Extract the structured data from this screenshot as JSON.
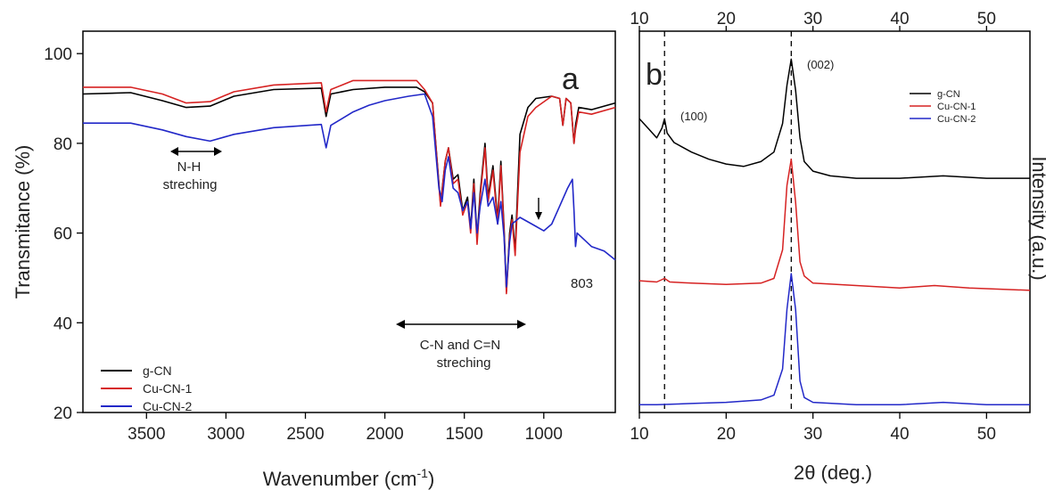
{
  "chart_data": [
    {
      "type": "line",
      "panel_label": "a",
      "xlabel": "Wavenumber (cm",
      "xlabel_sup": "-1",
      "xlabel_close": ")",
      "ylabel": "Transmitance (%)",
      "xlim": [
        3900,
        550
      ],
      "ylim": [
        20,
        105
      ],
      "x_ticks": [
        3500,
        3000,
        2500,
        2000,
        1500,
        1000
      ],
      "y_ticks": [
        20,
        40,
        60,
        80,
        100
      ],
      "legend_position": "bottom-left",
      "legend": [
        "g-CN",
        "Cu-CN-1",
        "Cu-CN-2"
      ],
      "annotations": {
        "nh_line1": "N-H",
        "nh_line2": "streching",
        "cn_line1": "C-N and C=N",
        "cn_line2": "streching",
        "peak": "803"
      },
      "series": [
        {
          "name": "g-CN",
          "color": "#000000",
          "points": [
            [
              3900,
              91
            ],
            [
              3600,
              91.3
            ],
            [
              3400,
              89.5
            ],
            [
              3250,
              88
            ],
            [
              3100,
              88.3
            ],
            [
              2950,
              90.5
            ],
            [
              2700,
              92
            ],
            [
              2400,
              92.3
            ],
            [
              2370,
              86
            ],
            [
              2340,
              91
            ],
            [
              2200,
              92
            ],
            [
              2000,
              92.5
            ],
            [
              1800,
              92.5
            ],
            [
              1750,
              91.5
            ],
            [
              1700,
              89
            ],
            [
              1650,
              66.5
            ],
            [
              1620,
              76
            ],
            [
              1600,
              79
            ],
            [
              1570,
              72
            ],
            [
              1540,
              73
            ],
            [
              1510,
              65
            ],
            [
              1480,
              68
            ],
            [
              1460,
              61
            ],
            [
              1440,
              72
            ],
            [
              1420,
              59
            ],
            [
              1400,
              69
            ],
            [
              1370,
              80
            ],
            [
              1350,
              68
            ],
            [
              1320,
              75
            ],
            [
              1290,
              63
            ],
            [
              1270,
              76
            ],
            [
              1250,
              61
            ],
            [
              1235,
              47
            ],
            [
              1215,
              60
            ],
            [
              1200,
              64
            ],
            [
              1180,
              56
            ],
            [
              1150,
              82
            ],
            [
              1100,
              88
            ],
            [
              1050,
              90
            ],
            [
              950,
              90.5
            ],
            [
              900,
              90
            ],
            [
              880,
              84
            ],
            [
              860,
              90
            ],
            [
              830,
              89
            ],
            [
              810,
              80
            ],
            [
              800,
              84
            ],
            [
              780,
              88
            ],
            [
              700,
              87.5
            ],
            [
              550,
              89
            ]
          ]
        },
        {
          "name": "Cu-CN-1",
          "color": "#d62222",
          "points": [
            [
              3900,
              92.5
            ],
            [
              3600,
              92.5
            ],
            [
              3400,
              91
            ],
            [
              3250,
              89
            ],
            [
              3100,
              89.3
            ],
            [
              2950,
              91.5
            ],
            [
              2700,
              93
            ],
            [
              2400,
              93.5
            ],
            [
              2370,
              87
            ],
            [
              2340,
              92
            ],
            [
              2200,
              94
            ],
            [
              2000,
              94
            ],
            [
              1800,
              94
            ],
            [
              1750,
              92
            ],
            [
              1700,
              89
            ],
            [
              1650,
              66
            ],
            [
              1620,
              76
            ],
            [
              1600,
              79
            ],
            [
              1570,
              71
            ],
            [
              1540,
              72
            ],
            [
              1510,
              64
            ],
            [
              1480,
              67
            ],
            [
              1460,
              60
            ],
            [
              1440,
              71
            ],
            [
              1420,
              57.5
            ],
            [
              1400,
              68
            ],
            [
              1370,
              79
            ],
            [
              1350,
              67
            ],
            [
              1320,
              74
            ],
            [
              1290,
              62
            ],
            [
              1270,
              75
            ],
            [
              1250,
              60
            ],
            [
              1235,
              46.5
            ],
            [
              1215,
              59
            ],
            [
              1200,
              63
            ],
            [
              1180,
              55
            ],
            [
              1150,
              78
            ],
            [
              1100,
              86
            ],
            [
              1050,
              88
            ],
            [
              950,
              90.5
            ],
            [
              900,
              90
            ],
            [
              880,
              84
            ],
            [
              860,
              90
            ],
            [
              830,
              89
            ],
            [
              810,
              80
            ],
            [
              800,
              83
            ],
            [
              780,
              87
            ],
            [
              700,
              86.5
            ],
            [
              550,
              88
            ]
          ]
        },
        {
          "name": "Cu-CN-2",
          "color": "#2228c8",
          "points": [
            [
              3900,
              84.5
            ],
            [
              3600,
              84.5
            ],
            [
              3400,
              83
            ],
            [
              3250,
              81.5
            ],
            [
              3100,
              80.5
            ],
            [
              2950,
              82
            ],
            [
              2700,
              83.5
            ],
            [
              2400,
              84.2
            ],
            [
              2370,
              79
            ],
            [
              2340,
              84
            ],
            [
              2200,
              87
            ],
            [
              2100,
              88.5
            ],
            [
              2000,
              89.5
            ],
            [
              1850,
              90.5
            ],
            [
              1750,
              91
            ],
            [
              1700,
              86
            ],
            [
              1660,
              70
            ],
            [
              1640,
              67
            ],
            [
              1620,
              74
            ],
            [
              1600,
              77
            ],
            [
              1570,
              70
            ],
            [
              1540,
              69
            ],
            [
              1510,
              65
            ],
            [
              1480,
              67
            ],
            [
              1460,
              61
            ],
            [
              1440,
              69
            ],
            [
              1420,
              60
            ],
            [
              1400,
              66
            ],
            [
              1370,
              72
            ],
            [
              1350,
              66
            ],
            [
              1320,
              68
            ],
            [
              1290,
              62
            ],
            [
              1270,
              67
            ],
            [
              1250,
              59
            ],
            [
              1235,
              48
            ],
            [
              1215,
              58
            ],
            [
              1200,
              62
            ],
            [
              1150,
              63.5
            ],
            [
              1100,
              62.5
            ],
            [
              1050,
              61.5
            ],
            [
              1000,
              60.5
            ],
            [
              950,
              62
            ],
            [
              900,
              66
            ],
            [
              850,
              70
            ],
            [
              820,
              72
            ],
            [
              810,
              65
            ],
            [
              800,
              57
            ],
            [
              790,
              60
            ],
            [
              700,
              57
            ],
            [
              620,
              56
            ],
            [
              550,
              54
            ]
          ]
        }
      ]
    },
    {
      "type": "line",
      "panel_label": "b",
      "xlabel": "2θ (deg.)",
      "ylabel": "Intensity (a.u.)",
      "xlim": [
        10,
        55
      ],
      "x_ticks": [
        10,
        20,
        30,
        40,
        50
      ],
      "x_ticks_top": [
        10,
        20,
        30,
        40,
        50
      ],
      "y_ticks": [],
      "legend_position": "top-right",
      "legend": [
        "g-CN",
        "Cu-CN-1",
        "Cu-CN-2"
      ],
      "reference_lines_x": [
        12.9,
        27.5
      ],
      "annotations": {
        "peak_100": "(100)",
        "peak_002": "(002)"
      },
      "series": [
        {
          "name": "g-CN",
          "color": "#000000",
          "points": [
            [
              10,
              0.7
            ],
            [
              11,
              0.66
            ],
            [
              12,
              0.62
            ],
            [
              12.6,
              0.66
            ],
            [
              12.9,
              0.7
            ],
            [
              13.2,
              0.64
            ],
            [
              14,
              0.6
            ],
            [
              16,
              0.56
            ],
            [
              18,
              0.53
            ],
            [
              20,
              0.51
            ],
            [
              22,
              0.5
            ],
            [
              24,
              0.52
            ],
            [
              25.5,
              0.56
            ],
            [
              26.5,
              0.68
            ],
            [
              27,
              0.84
            ],
            [
              27.5,
              0.95
            ],
            [
              28,
              0.82
            ],
            [
              28.5,
              0.62
            ],
            [
              29,
              0.52
            ],
            [
              30,
              0.48
            ],
            [
              32,
              0.46
            ],
            [
              35,
              0.45
            ],
            [
              40,
              0.45
            ],
            [
              45,
              0.46
            ],
            [
              50,
              0.45
            ],
            [
              55,
              0.45
            ]
          ]
        },
        {
          "name": "Cu-CN-1",
          "color": "#d62222",
          "points": [
            [
              10,
              0.02
            ],
            [
              12,
              0.015
            ],
            [
              12.9,
              0.03
            ],
            [
              13.5,
              0.015
            ],
            [
              16,
              0.01
            ],
            [
              20,
              0.005
            ],
            [
              24,
              0.01
            ],
            [
              25.5,
              0.03
            ],
            [
              26.5,
              0.15
            ],
            [
              27,
              0.42
            ],
            [
              27.5,
              0.53
            ],
            [
              28,
              0.35
            ],
            [
              28.5,
              0.1
            ],
            [
              29,
              0.04
            ],
            [
              30,
              0.01
            ],
            [
              35,
              0.0
            ],
            [
              40,
              -0.01
            ],
            [
              44,
              0.0
            ],
            [
              48,
              -0.01
            ],
            [
              55,
              -0.02
            ]
          ]
        },
        {
          "name": "Cu-CN-2",
          "color": "#2228c8",
          "points": [
            [
              10,
              -0.5
            ],
            [
              12,
              -0.5
            ],
            [
              16,
              -0.495
            ],
            [
              20,
              -0.49
            ],
            [
              24,
              -0.48
            ],
            [
              25.5,
              -0.46
            ],
            [
              26.5,
              -0.35
            ],
            [
              27,
              -0.1
            ],
            [
              27.5,
              0.05
            ],
            [
              28,
              -0.1
            ],
            [
              28.5,
              -0.4
            ],
            [
              29,
              -0.47
            ],
            [
              30,
              -0.49
            ],
            [
              35,
              -0.5
            ],
            [
              40,
              -0.5
            ],
            [
              45,
              -0.49
            ],
            [
              50,
              -0.5
            ],
            [
              55,
              -0.5
            ]
          ]
        }
      ]
    }
  ]
}
